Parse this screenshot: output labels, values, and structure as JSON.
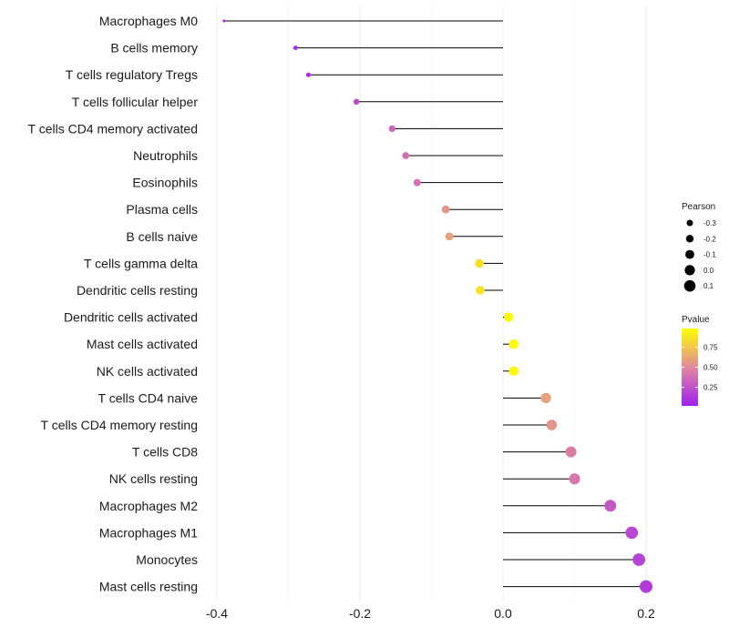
{
  "chart_data": {
    "type": "lollipop",
    "title": "",
    "xlabel": "",
    "ylabel": "",
    "xlim": [
      -0.42,
      0.22
    ],
    "x_ticks": [
      {
        "value": -0.4,
        "label": "-0.4"
      },
      {
        "value": -0.2,
        "label": "-0.2"
      },
      {
        "value": 0.0,
        "label": "0.0"
      },
      {
        "value": 0.2,
        "label": "0.2"
      }
    ],
    "minor_grid": [
      -0.3,
      -0.1,
      0.1
    ],
    "categories": [
      "Macrophages M0",
      "B cells memory",
      "T cells regulatory  Tregs ",
      "T cells follicular helper",
      "T cells CD4 memory activated",
      "Neutrophils",
      "Eosinophils",
      "Plasma cells",
      "B cells naive",
      "T cells gamma delta",
      "Dendritic cells resting",
      "Dendritic cells activated",
      "Mast cells activated",
      "NK cells activated",
      "T cells CD4 naive",
      "T cells CD4 memory resting",
      "T cells CD8",
      "NK cells resting",
      "Macrophages M2",
      "Macrophages M1",
      "Monocytes",
      "Mast cells resting"
    ],
    "pearson": [
      -0.39,
      -0.29,
      -0.272,
      -0.205,
      -0.155,
      -0.136,
      -0.12,
      -0.08,
      -0.075,
      -0.033,
      -0.032,
      0.008,
      0.015,
      0.015,
      0.06,
      0.068,
      0.095,
      0.1,
      0.15,
      0.18,
      0.19,
      0.2
    ],
    "pvalue": [
      0.02,
      0.08,
      0.1,
      0.22,
      0.35,
      0.38,
      0.4,
      0.55,
      0.6,
      0.85,
      0.86,
      0.98,
      0.96,
      0.96,
      0.6,
      0.55,
      0.45,
      0.42,
      0.28,
      0.2,
      0.18,
      0.15
    ],
    "legend_size": {
      "title": "Pearson",
      "entries": [
        {
          "value": -0.3,
          "label": "-0.3"
        },
        {
          "value": -0.2,
          "label": "-0.2"
        },
        {
          "value": -0.1,
          "label": "-0.1"
        },
        {
          "value": 0.0,
          "label": "0.0"
        },
        {
          "value": 0.1,
          "label": "0.1"
        }
      ]
    },
    "legend_color": {
      "title": "Pvalue",
      "range": [
        0.02,
        0.98
      ],
      "ticks": [
        {
          "value": 0.75,
          "label": "0.75"
        },
        {
          "value": 0.5,
          "label": "0.50"
        },
        {
          "value": 0.25,
          "label": "0.25"
        }
      ],
      "low_color": "#a020f0",
      "mid_color": "#e0899c",
      "high_color": "#ffff00"
    },
    "legend_position": "right"
  }
}
